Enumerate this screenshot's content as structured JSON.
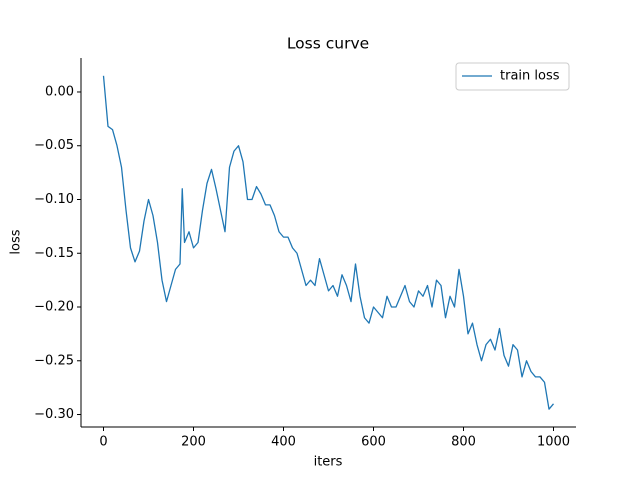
{
  "chart_data": {
    "type": "line",
    "title": "Loss curve",
    "x_label": "iters",
    "y_label": "loss",
    "x": [
      0,
      10,
      20,
      30,
      40,
      50,
      60,
      70,
      80,
      90,
      100,
      110,
      120,
      130,
      140,
      150,
      160,
      170,
      175,
      180,
      190,
      200,
      210,
      220,
      230,
      240,
      250,
      260,
      270,
      280,
      290,
      300,
      310,
      320,
      330,
      340,
      350,
      360,
      370,
      380,
      390,
      400,
      410,
      420,
      430,
      440,
      450,
      460,
      470,
      480,
      490,
      500,
      510,
      520,
      530,
      540,
      550,
      560,
      570,
      580,
      590,
      600,
      610,
      620,
      630,
      640,
      650,
      660,
      670,
      680,
      690,
      700,
      710,
      720,
      730,
      740,
      750,
      760,
      770,
      780,
      790,
      800,
      810,
      820,
      830,
      840,
      850,
      860,
      870,
      880,
      890,
      900,
      910,
      920,
      930,
      940,
      950,
      960,
      970,
      980,
      990,
      1000
    ],
    "series": [
      {
        "name": "train loss",
        "color": "#1f77b4",
        "values": [
          0.015,
          -0.032,
          -0.035,
          -0.05,
          -0.07,
          -0.11,
          -0.145,
          -0.158,
          -0.148,
          -0.12,
          -0.1,
          -0.115,
          -0.14,
          -0.175,
          -0.195,
          -0.18,
          -0.165,
          -0.16,
          -0.09,
          -0.14,
          -0.13,
          -0.145,
          -0.14,
          -0.11,
          -0.085,
          -0.072,
          -0.09,
          -0.11,
          -0.13,
          -0.07,
          -0.055,
          -0.05,
          -0.065,
          -0.1,
          -0.1,
          -0.088,
          -0.095,
          -0.105,
          -0.105,
          -0.115,
          -0.13,
          -0.135,
          -0.135,
          -0.145,
          -0.15,
          -0.165,
          -0.18,
          -0.175,
          -0.18,
          -0.155,
          -0.17,
          -0.185,
          -0.18,
          -0.19,
          -0.17,
          -0.18,
          -0.195,
          -0.16,
          -0.19,
          -0.21,
          -0.215,
          -0.2,
          -0.205,
          -0.21,
          -0.19,
          -0.2,
          -0.2,
          -0.19,
          -0.18,
          -0.195,
          -0.2,
          -0.185,
          -0.19,
          -0.18,
          -0.2,
          -0.175,
          -0.18,
          -0.21,
          -0.19,
          -0.2,
          -0.165,
          -0.19,
          -0.225,
          -0.215,
          -0.235,
          -0.25,
          -0.235,
          -0.23,
          -0.24,
          -0.22,
          -0.245,
          -0.255,
          -0.235,
          -0.24,
          -0.265,
          -0.25,
          -0.26,
          -0.265,
          -0.265,
          -0.27,
          -0.295,
          -0.29
        ]
      }
    ],
    "xlim": [
      -50,
      1050
    ],
    "ylim": [
      -0.3116,
      0.0316
    ],
    "xticks": [
      0,
      200,
      400,
      600,
      800,
      1000
    ],
    "yticks": [
      {
        "value": -0.3,
        "label": "−0.30"
      },
      {
        "value": -0.25,
        "label": "−0.25"
      },
      {
        "value": -0.2,
        "label": "−0.20"
      },
      {
        "value": -0.15,
        "label": "−0.15"
      },
      {
        "value": -0.1,
        "label": "−0.10"
      },
      {
        "value": -0.05,
        "label": "−0.05"
      },
      {
        "value": 0,
        "label": "0.00"
      }
    ],
    "legend": "upper right"
  }
}
